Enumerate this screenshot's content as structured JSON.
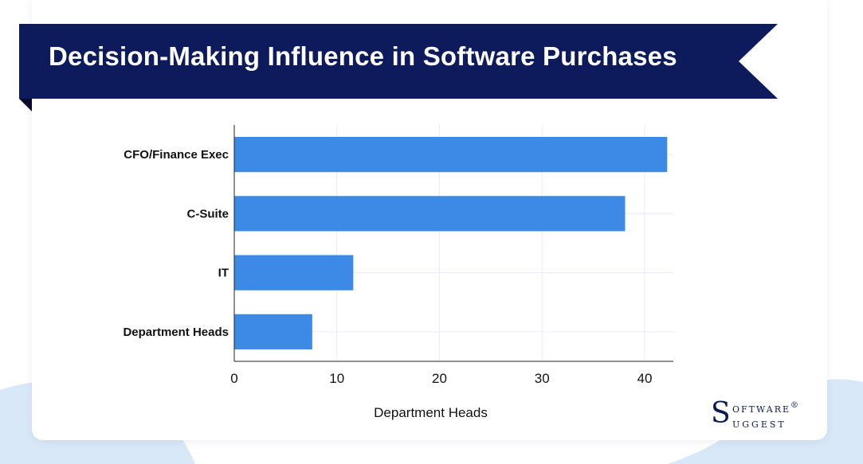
{
  "title": "Decision-Making Influence in Software Purchases",
  "colors": {
    "banner": "#0d1a5c",
    "bar": "#3d8ae6",
    "grid": "#e6ecf5",
    "background_wave": "#d9e8f8"
  },
  "chart_data": {
    "type": "bar",
    "orientation": "horizontal",
    "categories": [
      "CFO/Finance Exec",
      "C-Suite",
      "IT",
      "Department Heads"
    ],
    "values": [
      42.2,
      38.1,
      11.6,
      7.6
    ],
    "title": "Decision-Making Influence in Software Purchases",
    "xlabel": "Department Heads",
    "ylabel": "",
    "xlim": [
      0,
      42.8
    ],
    "xticks": [
      0,
      10,
      20,
      30,
      40
    ],
    "xtick_labels": [
      "0",
      "10",
      "20",
      "30",
      "40"
    ],
    "grid": true,
    "legend": "none"
  },
  "logo": {
    "initial": "S",
    "line1": "oftware",
    "registered": "®",
    "line2": "uggest"
  }
}
